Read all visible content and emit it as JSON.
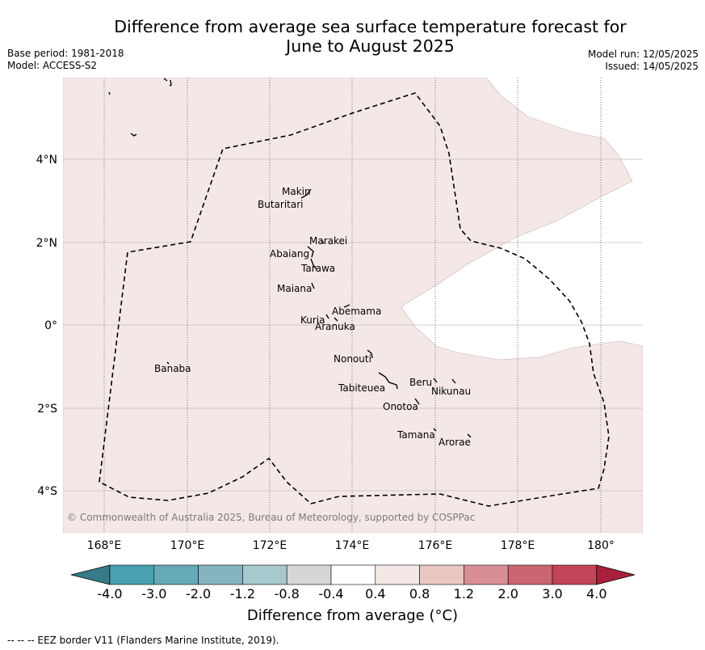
{
  "title_line1": "Difference from average sea surface temperature forecast for",
  "title_line2": "June to August 2025",
  "base_period": "Base period: 1981-2018",
  "model": "Model: ACCESS-S2",
  "model_run": "Model run: 12/05/2025",
  "issued": "Issued: 14/05/2025",
  "copyright": "© Commonwealth of Australia 2025, Bureau of Meteorology, supported by COSPPac",
  "lon_ticks": [
    "168°E",
    "170°E",
    "172°E",
    "174°E",
    "176°E",
    "178°E",
    "180°"
  ],
  "lat_ticks": [
    "4°N",
    "2°N",
    "0°",
    "2°S",
    "4°S"
  ],
  "islands": {
    "makin": "Makin",
    "butaritari": "Butaritari",
    "marakei": "Marakei",
    "abaiang": "Abaiang",
    "tarawa": "Tarawa",
    "maiana": "Maiana",
    "abemama": "Abemama",
    "kuria": "Kuria",
    "aranuka": "Aranuka",
    "banaba": "Banaba",
    "nonouti": "Nonouti",
    "tabiteuea": "Tabiteuea",
    "beru": "Beru",
    "nikunau": "Nikunau",
    "onotoa": "Onotoa",
    "tamana": "Tamana",
    "arorae": "Arorae"
  },
  "colorbar": {
    "labels": [
      "-4.0",
      "-3.0",
      "-2.0",
      "-1.2",
      "-0.8",
      "-0.4",
      "0.4",
      "0.8",
      "1.2",
      "2.0",
      "3.0",
      "4.0"
    ],
    "colors": [
      "#357b88",
      "#48a1b0",
      "#66aab8",
      "#85b4c0",
      "#a7c8cc",
      "#d4d6d8",
      "#ffffff",
      "#f4e8e7",
      "#e8c7c2",
      "#d78e97",
      "#cb6670",
      "#c14556",
      "#a91f3e"
    ],
    "title": "Difference from average (°C)"
  },
  "field_colors": {
    "anomaly_04_08": "#f4e8e7",
    "anomaly_-04_04": "#ffffff"
  },
  "eez_note": "--  --  -- EEZ border V11 (Flanders Marine Institute, 2019)."
}
